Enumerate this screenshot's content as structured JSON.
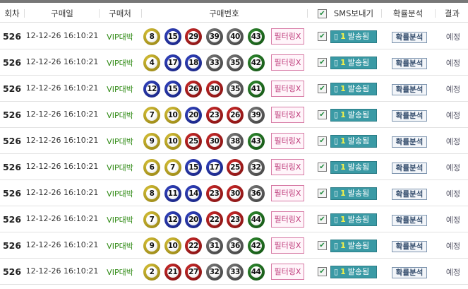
{
  "header": {
    "round": "회차",
    "date": "구매일",
    "shop": "구매처",
    "numbers": "구매번호",
    "sms": "SMS보내기",
    "analysis": "확률분석",
    "result": "결과"
  },
  "ball_colors": {
    "1-10": "#c8b22c",
    "11-20": "#2233a0",
    "21-30": "#b02020",
    "31-40": "#666666",
    "41-45": "#2c7a2c"
  },
  "rows": [
    {
      "round": "526",
      "date": "12-12-26 16:10:21",
      "shop": "VIP대박",
      "numbers": [
        8,
        15,
        29,
        39,
        40,
        43
      ],
      "filter": "필터링X",
      "sms_count": "1",
      "sms_status": "발송됨",
      "analysis": "확률분석",
      "result": "예정"
    },
    {
      "round": "526",
      "date": "12-12-26 16:10:21",
      "shop": "VIP대박",
      "numbers": [
        4,
        17,
        18,
        33,
        35,
        42
      ],
      "filter": "필터링X",
      "sms_count": "1",
      "sms_status": "발송됨",
      "analysis": "확률분석",
      "result": "예정"
    },
    {
      "round": "526",
      "date": "12-12-26 16:10:21",
      "shop": "VIP대박",
      "numbers": [
        12,
        15,
        26,
        30,
        35,
        41
      ],
      "filter": "필터링X",
      "sms_count": "1",
      "sms_status": "발송됨",
      "analysis": "확률분석",
      "result": "예정"
    },
    {
      "round": "526",
      "date": "12-12-26 16:10:21",
      "shop": "VIP대박",
      "numbers": [
        7,
        10,
        20,
        23,
        26,
        39
      ],
      "filter": "필터링X",
      "sms_count": "1",
      "sms_status": "발송됨",
      "analysis": "확률분석",
      "result": "예정"
    },
    {
      "round": "526",
      "date": "12-12-26 16:10:21",
      "shop": "VIP대박",
      "numbers": [
        9,
        10,
        25,
        30,
        38,
        43
      ],
      "filter": "필터링X",
      "sms_count": "1",
      "sms_status": "발송됨",
      "analysis": "확률분석",
      "result": "예정"
    },
    {
      "round": "526",
      "date": "12-12-26 16:10:21",
      "shop": "VIP대박",
      "numbers": [
        6,
        7,
        15,
        17,
        25,
        32
      ],
      "filter": "필터링X",
      "sms_count": "1",
      "sms_status": "발송됨",
      "analysis": "확률분석",
      "result": "예정"
    },
    {
      "round": "526",
      "date": "12-12-26 16:10:21",
      "shop": "VIP대박",
      "numbers": [
        8,
        11,
        14,
        23,
        30,
        36
      ],
      "filter": "필터링X",
      "sms_count": "1",
      "sms_status": "발송됨",
      "analysis": "확률분석",
      "result": "예정"
    },
    {
      "round": "526",
      "date": "12-12-26 16:10:21",
      "shop": "VIP대박",
      "numbers": [
        7,
        12,
        20,
        22,
        23,
        44
      ],
      "filter": "필터링X",
      "sms_count": "1",
      "sms_status": "발송됨",
      "analysis": "확률분석",
      "result": "예정"
    },
    {
      "round": "526",
      "date": "12-12-26 16:10:21",
      "shop": "VIP대박",
      "numbers": [
        9,
        10,
        22,
        31,
        36,
        42
      ],
      "filter": "필터링X",
      "sms_count": "1",
      "sms_status": "발송됨",
      "analysis": "확률분석",
      "result": "예정"
    },
    {
      "round": "526",
      "date": "12-12-26 16:10:21",
      "shop": "VIP대박",
      "numbers": [
        2,
        21,
        27,
        32,
        33,
        44
      ],
      "filter": "필터링X",
      "sms_count": "1",
      "sms_status": "발송됨",
      "analysis": "확률분석",
      "result": "예정"
    }
  ]
}
